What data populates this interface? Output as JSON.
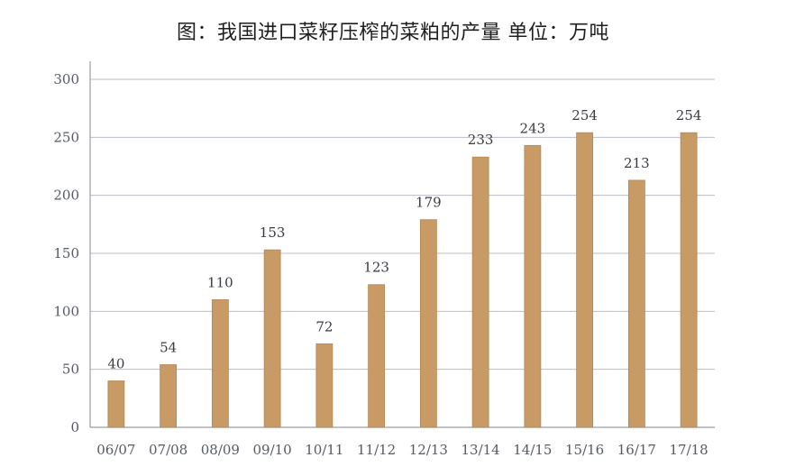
{
  "chart_data": {
    "type": "bar",
    "title": "图：我国进口菜籽压榨的菜粕的产量 单位：万吨",
    "xlabel": "",
    "ylabel": "",
    "categories": [
      "06/07",
      "07/08",
      "08/09",
      "09/10",
      "10/11",
      "11/12",
      "12/13",
      "13/14",
      "14/15",
      "15/16",
      "16/17",
      "17/18"
    ],
    "values": [
      40,
      54,
      110,
      153,
      72,
      123,
      179,
      233,
      243,
      254,
      213,
      254
    ],
    "data_labels": [
      "40",
      "54",
      "110",
      "153",
      "72",
      "123",
      "179",
      "233",
      "243",
      "254",
      "213",
      "254"
    ],
    "ylim": [
      0,
      300
    ],
    "yticks": [
      0,
      50,
      100,
      150,
      200,
      250,
      300
    ],
    "ytick_labels": [
      "0",
      "50",
      "100",
      "150",
      "200",
      "250",
      "300"
    ],
    "grid": true,
    "legend": "none",
    "bar_color": "#c89b66",
    "bar_edge_color": "#b5864f"
  }
}
